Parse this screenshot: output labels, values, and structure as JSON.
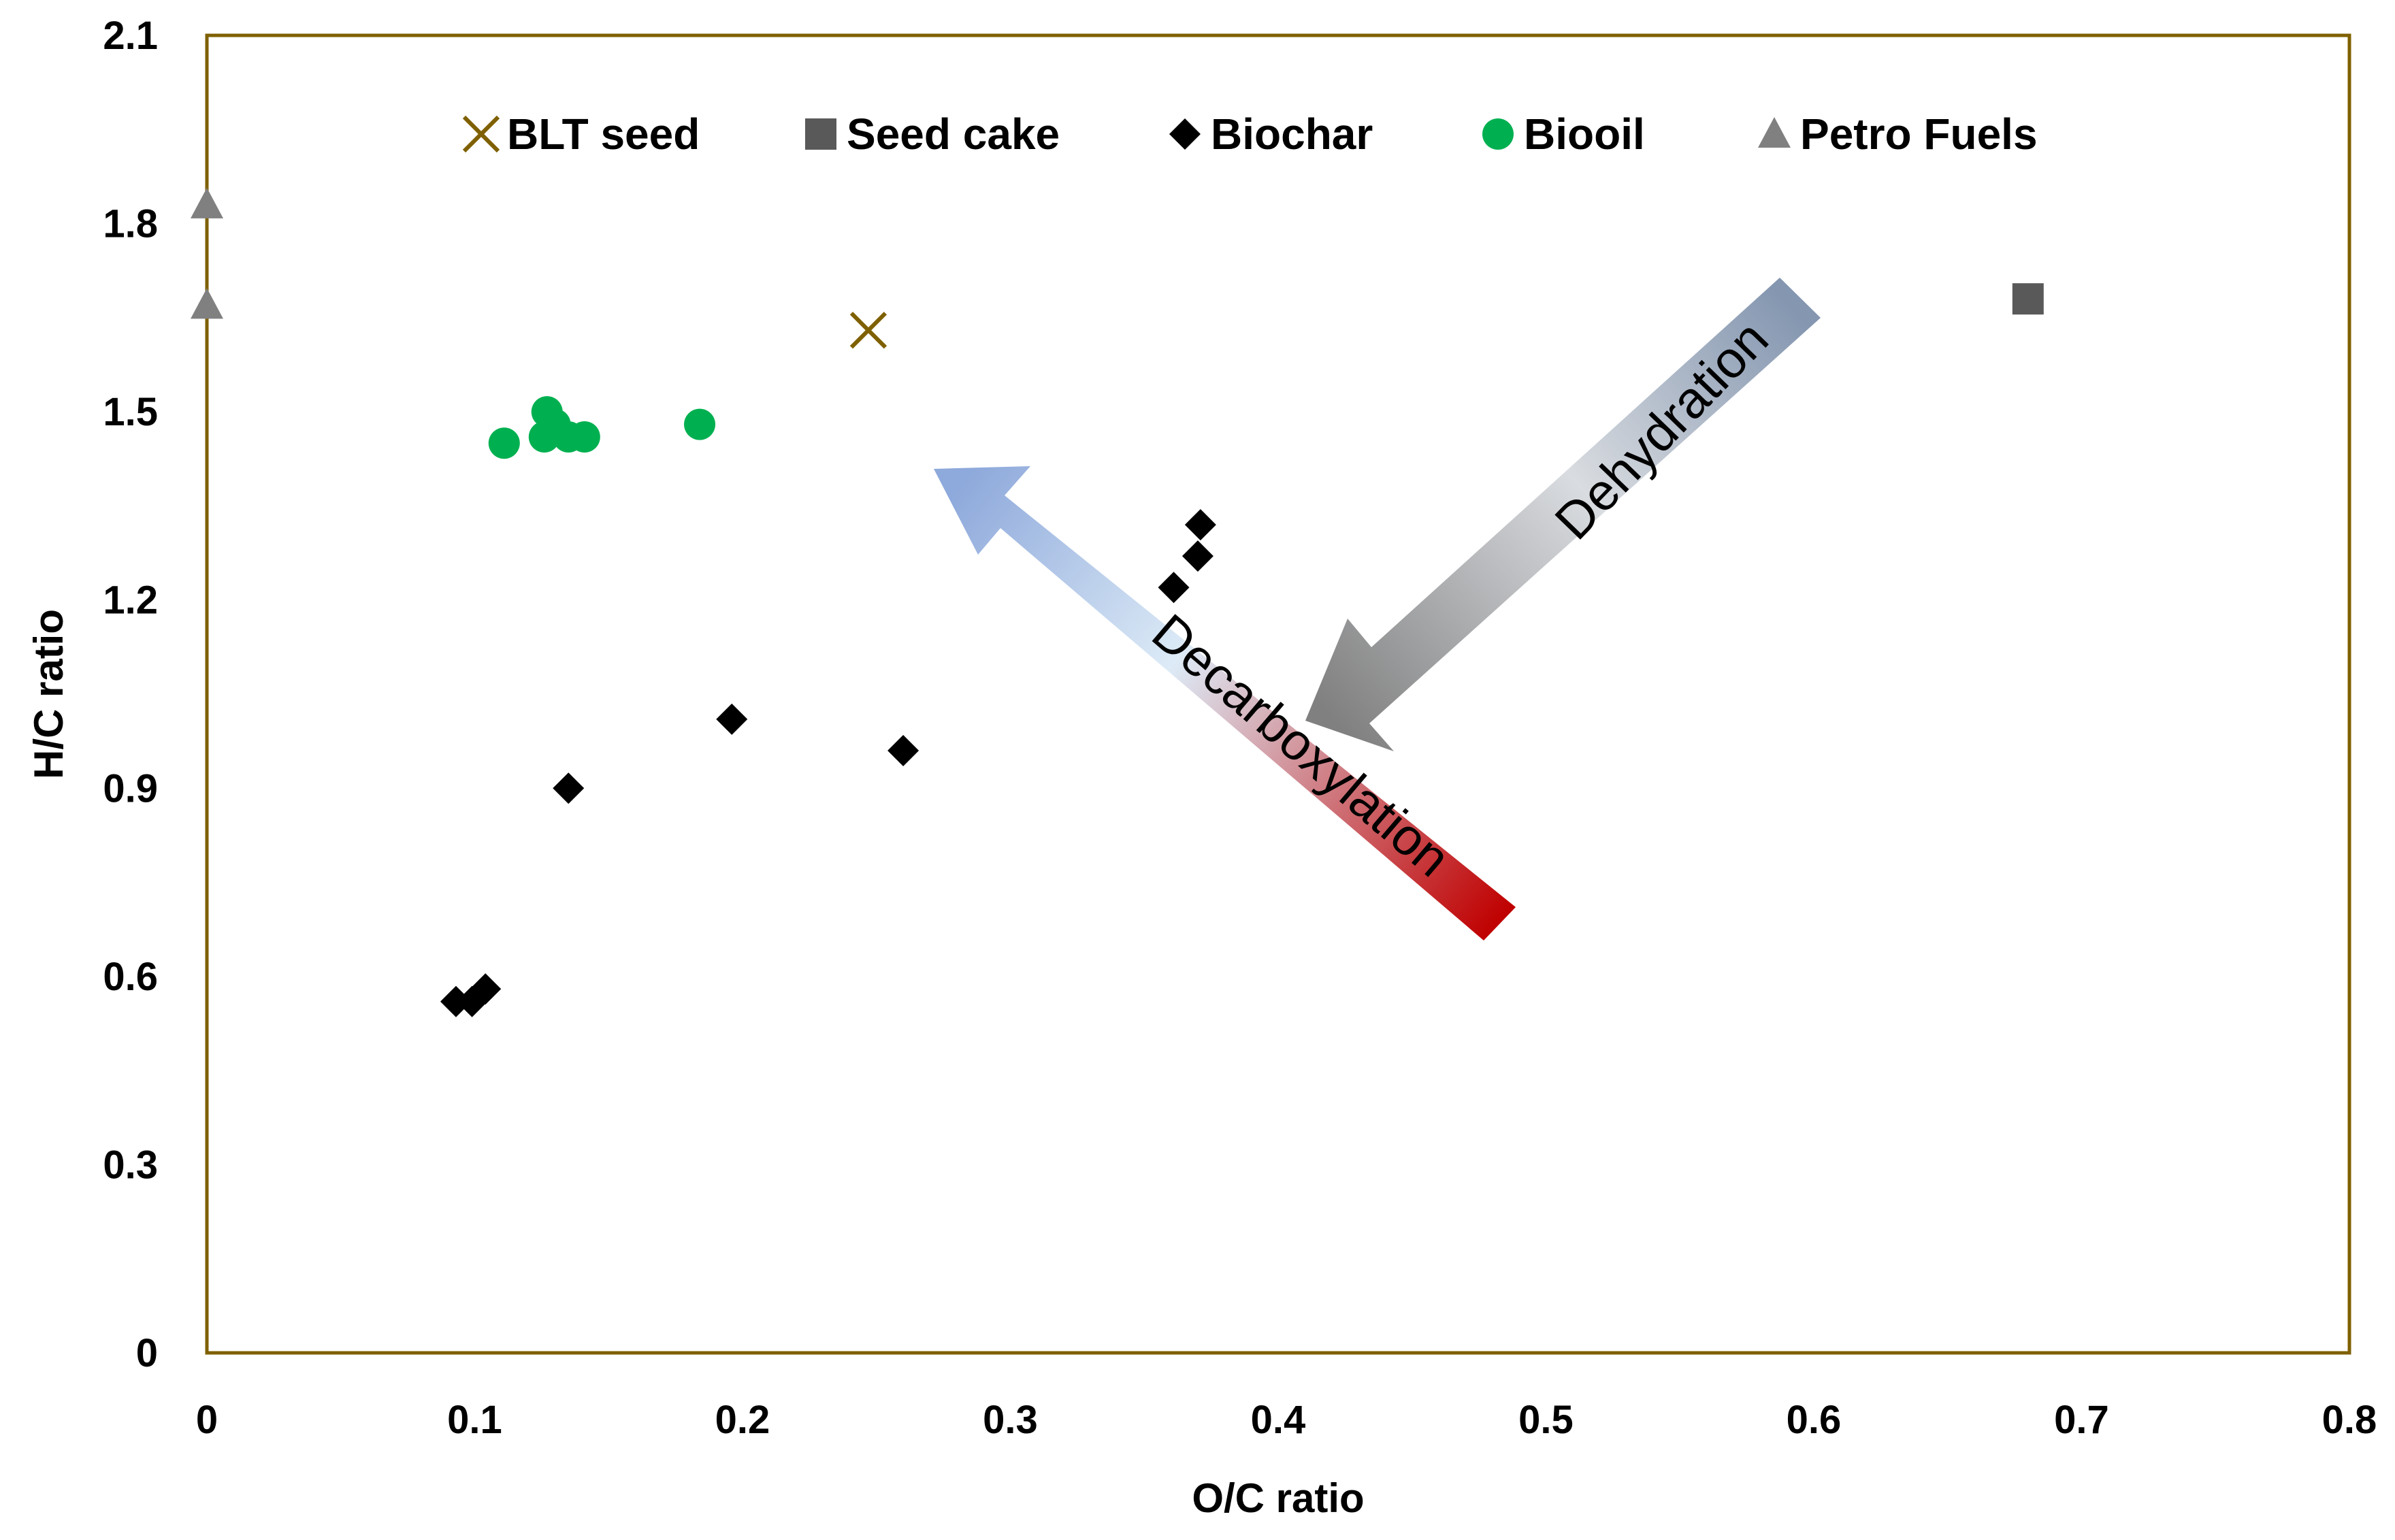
{
  "chart_data": {
    "type": "scatter",
    "title": "",
    "xlabel": "O/C ratio",
    "ylabel": "H/C ratio",
    "xlim": [
      0,
      0.8
    ],
    "ylim": [
      0,
      2.1
    ],
    "xticks": [
      "0",
      "0.1",
      "0.2",
      "0.3",
      "0.4",
      "0.5",
      "0.6",
      "0.7",
      "0.8"
    ],
    "yticks": [
      "0",
      "0.3",
      "0.6",
      "0.9",
      "1.2",
      "1.5",
      "1.8",
      "2.1"
    ],
    "grid": false,
    "legend_position": "top",
    "series": [
      {
        "name": "BLT seed",
        "marker": "x",
        "color": "#7F6000",
        "points": [
          {
            "x": 0.247,
            "y": 1.63
          }
        ]
      },
      {
        "name": "Seed cake",
        "marker": "square",
        "color": "#595959",
        "points": [
          {
            "x": 0.68,
            "y": 1.68
          }
        ]
      },
      {
        "name": "Biochar",
        "marker": "diamond",
        "color": "#000000",
        "points": [
          {
            "x": 0.093,
            "y": 0.56
          },
          {
            "x": 0.099,
            "y": 0.56
          },
          {
            "x": 0.104,
            "y": 0.58
          },
          {
            "x": 0.135,
            "y": 0.9
          },
          {
            "x": 0.196,
            "y": 1.01
          },
          {
            "x": 0.26,
            "y": 0.96
          },
          {
            "x": 0.361,
            "y": 1.22
          },
          {
            "x": 0.37,
            "y": 1.27
          },
          {
            "x": 0.371,
            "y": 1.32
          }
        ]
      },
      {
        "name": "Biooil",
        "marker": "circle",
        "color": "#00B050",
        "points": [
          {
            "x": 0.111,
            "y": 1.45
          },
          {
            "x": 0.126,
            "y": 1.46
          },
          {
            "x": 0.127,
            "y": 1.5
          },
          {
            "x": 0.13,
            "y": 1.48
          },
          {
            "x": 0.135,
            "y": 1.46
          },
          {
            "x": 0.141,
            "y": 1.46
          },
          {
            "x": 0.184,
            "y": 1.48
          }
        ]
      },
      {
        "name": "Petro Fuels",
        "marker": "triangle",
        "color": "#808080",
        "points": [
          {
            "x": 0.0,
            "y": 1.83
          },
          {
            "x": 0.0,
            "y": 1.67
          }
        ]
      }
    ],
    "annotations": [
      {
        "text": "Dehydration",
        "type": "arrow",
        "gradient": [
          "#8496B0",
          "#DCDCDC",
          "#808080"
        ]
      },
      {
        "text": "Decarboxylation",
        "type": "arrow",
        "gradient": [
          "#8EA9DB",
          "#DDEBF7",
          "#C00000"
        ]
      }
    ],
    "plot_border_color": "#7F6000"
  }
}
